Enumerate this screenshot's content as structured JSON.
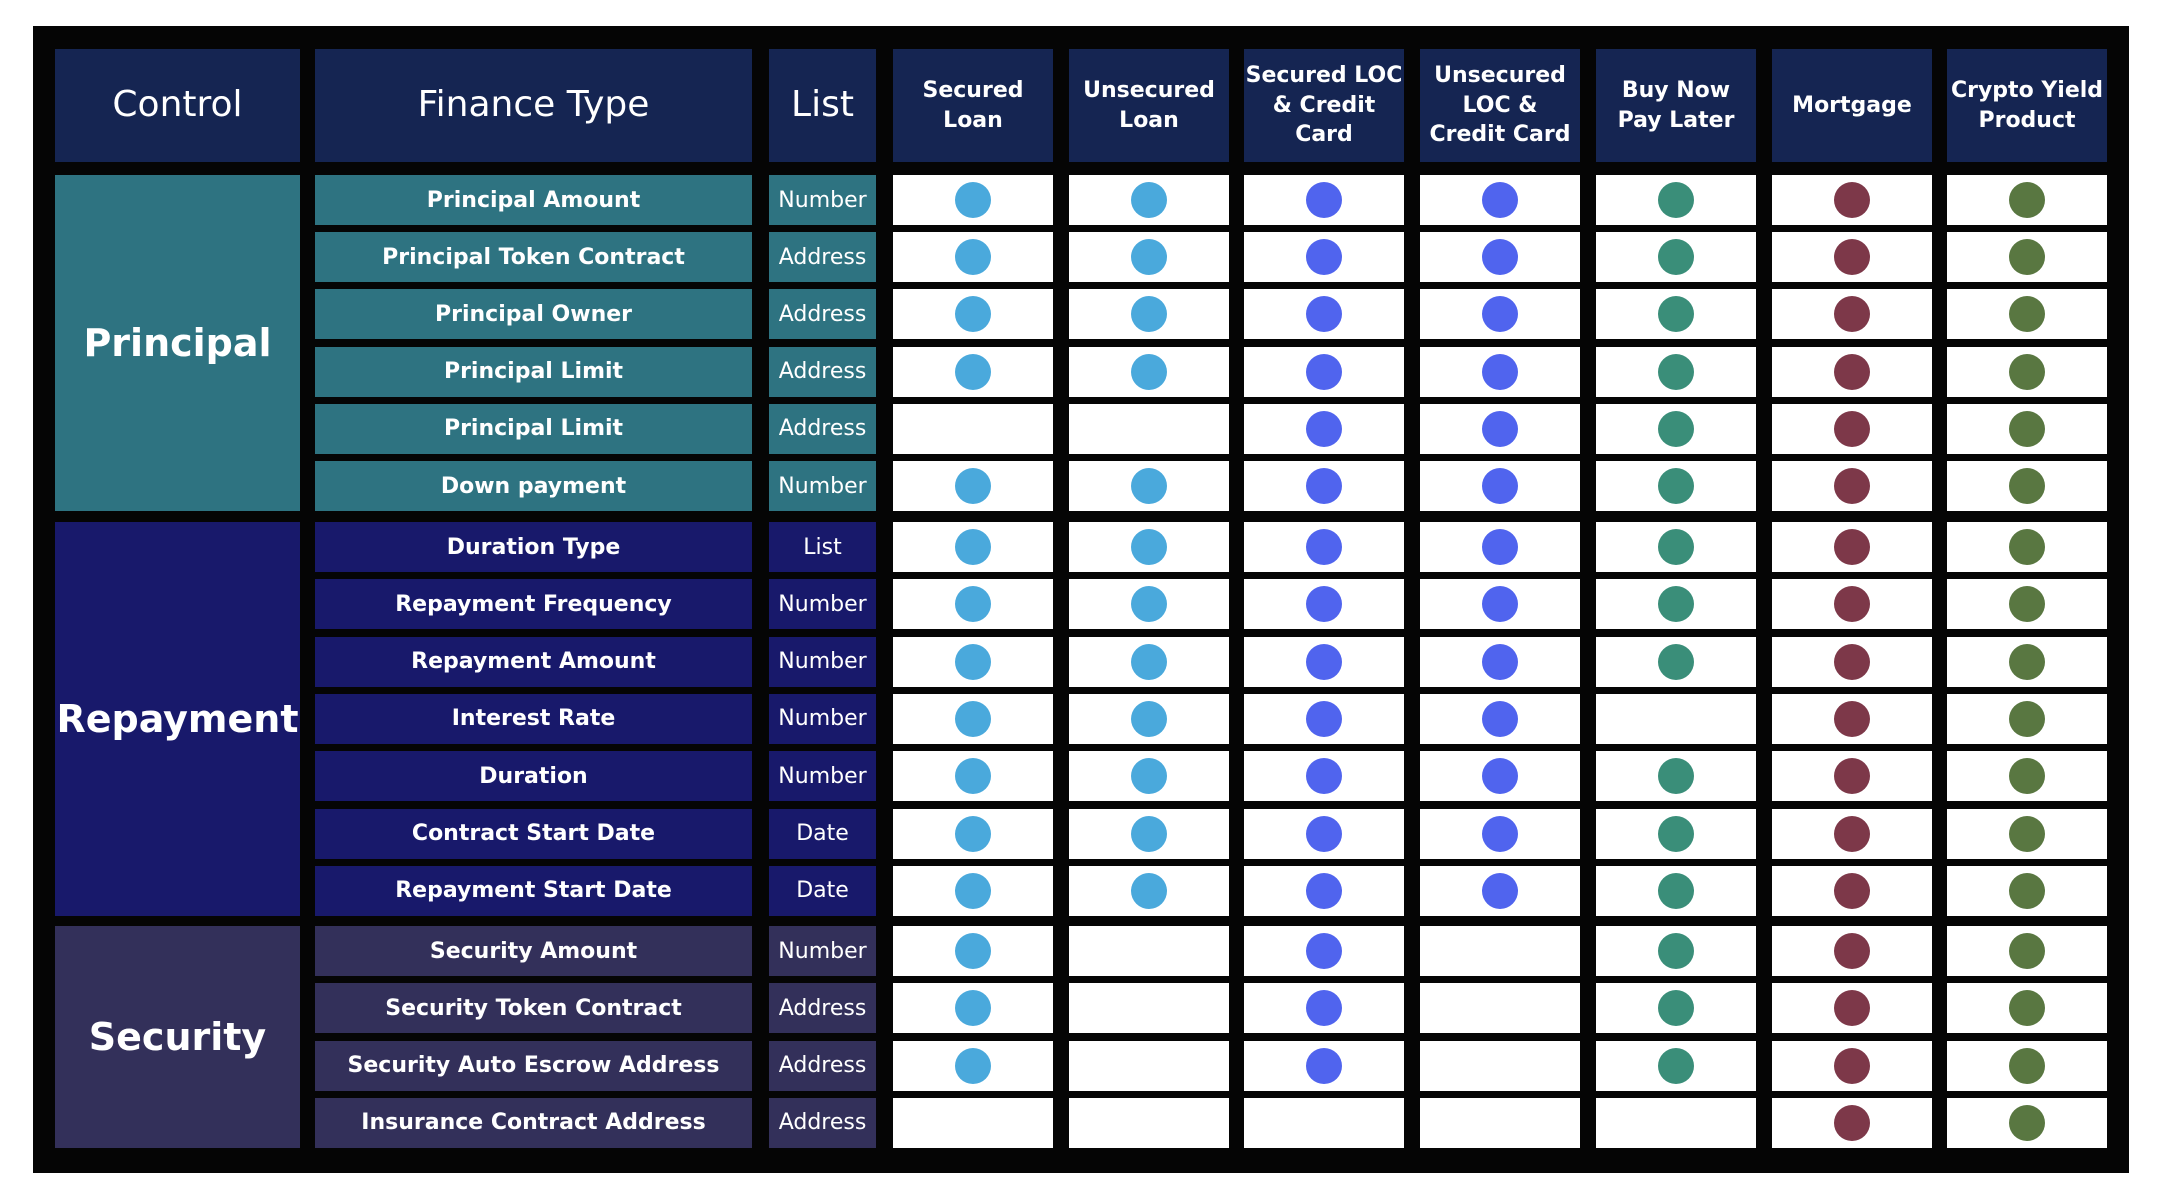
{
  "headers": {
    "control": "Control",
    "finance_type": "Finance Type",
    "list": "List",
    "products": [
      "Secured\nLoan",
      "Unsecured\nLoan",
      "Secured LOC\n& Credit\nCard",
      "Unsecured\nLOC &\nCredit Card",
      "Buy Now\nPay Later",
      "Mortgage",
      "Crypto Yield\nProduct"
    ]
  },
  "colors": {
    "header_bg": "#152552",
    "product_dots": [
      "#4aa9dc",
      "#4aa9dc",
      "#5064ee",
      "#5064ee",
      "#3a8e79",
      "#7d3849",
      "#597741"
    ]
  },
  "groups": [
    {
      "name": "Principal",
      "bg": "#2e7381",
      "rows": [
        {
          "label": "Principal Amount",
          "type": "Number",
          "support": [
            1,
            1,
            1,
            1,
            1,
            1,
            1
          ]
        },
        {
          "label": "Principal Token Contract",
          "type": "Address",
          "support": [
            1,
            1,
            1,
            1,
            1,
            1,
            1
          ]
        },
        {
          "label": "Principal Owner",
          "type": "Address",
          "support": [
            1,
            1,
            1,
            1,
            1,
            1,
            1
          ]
        },
        {
          "label": "Principal Limit",
          "type": "Address",
          "support": [
            1,
            1,
            1,
            1,
            1,
            1,
            1
          ]
        },
        {
          "label": "Principal Limit",
          "type": "Address",
          "support": [
            0,
            0,
            1,
            1,
            1,
            1,
            1
          ]
        },
        {
          "label": "Down payment",
          "type": "Number",
          "support": [
            1,
            1,
            1,
            1,
            1,
            1,
            1
          ]
        }
      ]
    },
    {
      "name": "Repayment",
      "bg": "#18196b",
      "rows": [
        {
          "label": "Duration Type",
          "type": "List",
          "support": [
            1,
            1,
            1,
            1,
            1,
            1,
            1
          ]
        },
        {
          "label": "Repayment Frequency",
          "type": "Number",
          "support": [
            1,
            1,
            1,
            1,
            1,
            1,
            1
          ]
        },
        {
          "label": "Repayment Amount",
          "type": "Number",
          "support": [
            1,
            1,
            1,
            1,
            1,
            1,
            1
          ]
        },
        {
          "label": "Interest Rate",
          "type": "Number",
          "support": [
            1,
            1,
            1,
            1,
            0,
            1,
            1
          ]
        },
        {
          "label": "Duration",
          "type": "Number",
          "support": [
            1,
            1,
            1,
            1,
            1,
            1,
            1
          ]
        },
        {
          "label": "Contract Start Date",
          "type": "Date",
          "support": [
            1,
            1,
            1,
            1,
            1,
            1,
            1
          ]
        },
        {
          "label": "Repayment Start Date",
          "type": "Date",
          "support": [
            1,
            1,
            1,
            1,
            1,
            1,
            1
          ]
        }
      ]
    },
    {
      "name": "Security",
      "bg": "#33305a",
      "rows": [
        {
          "label": "Security Amount",
          "type": "Number",
          "support": [
            1,
            0,
            1,
            0,
            1,
            1,
            1
          ]
        },
        {
          "label": "Security Token Contract",
          "type": "Address",
          "support": [
            1,
            0,
            1,
            0,
            1,
            1,
            1
          ]
        },
        {
          "label": "Security Auto Escrow Address",
          "type": "Address",
          "support": [
            1,
            0,
            1,
            0,
            1,
            1,
            1
          ]
        },
        {
          "label": "Insurance Contract Address",
          "type": "Address",
          "support": [
            0,
            0,
            0,
            0,
            0,
            1,
            1
          ]
        }
      ]
    }
  ]
}
